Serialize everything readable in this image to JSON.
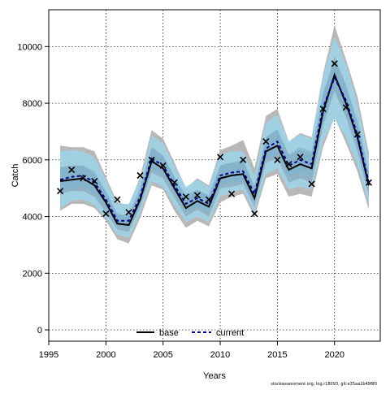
{
  "chart_data": {
    "type": "line",
    "xlabel": "Years",
    "ylabel": "Catch",
    "xlim": [
      1995,
      2024
    ],
    "ylim": [
      -400,
      11300
    ],
    "xticks": [
      1995,
      2000,
      2005,
      2010,
      2015,
      2020
    ],
    "yticks": [
      0,
      2000,
      4000,
      6000,
      8000,
      10000
    ],
    "grid": true,
    "legend_position": "bottom-center",
    "x": [
      1996,
      1997,
      1998,
      1999,
      2000,
      2001,
      2002,
      2003,
      2004,
      2005,
      2006,
      2007,
      2008,
      2009,
      2010,
      2011,
      2012,
      2013,
      2014,
      2015,
      2016,
      2017,
      2018,
      2019,
      2020,
      2021,
      2022,
      2023
    ],
    "series": [
      {
        "name": "base",
        "line_style": "solid",
        "color": "#000000",
        "band_color": "#b0b0b0",
        "values": [
          5250,
          5300,
          5350,
          5100,
          4500,
          3750,
          3700,
          4600,
          5950,
          5700,
          5000,
          4300,
          4550,
          4350,
          5350,
          5450,
          5500,
          4650,
          6300,
          6500,
          5650,
          5850,
          5700,
          7700,
          9000,
          8000,
          6800,
          5100
        ],
        "outer_lower": [
          4200,
          4450,
          4450,
          4300,
          3850,
          3200,
          3050,
          3950,
          5100,
          4950,
          4200,
          3600,
          3850,
          3650,
          4500,
          4700,
          4800,
          4000,
          5350,
          5500,
          4700,
          4800,
          4700,
          6450,
          7500,
          6600,
          5600,
          4250
        ],
        "outer_upper": [
          6500,
          6450,
          6450,
          6300,
          5400,
          4500,
          4400,
          5400,
          7050,
          6750,
          5900,
          5000,
          5350,
          5100,
          6350,
          6500,
          6700,
          5700,
          7550,
          7800,
          6650,
          6950,
          6800,
          9050,
          10750,
          9550,
          8250,
          6250
        ],
        "inner_lower": [
          4800,
          4900,
          4900,
          4700,
          4150,
          3550,
          3450,
          4350,
          5550,
          5350,
          4650,
          4000,
          4250,
          4000,
          5000,
          5050,
          5150,
          4350,
          5900,
          6050,
          5200,
          5350,
          5200,
          7200,
          8450,
          7500,
          6300,
          4750
        ],
        "inner_upper": [
          5750,
          5800,
          5800,
          5500,
          4850,
          4100,
          4000,
          5000,
          6450,
          6150,
          5400,
          4600,
          4900,
          4700,
          5800,
          5900,
          6000,
          5050,
          6800,
          7050,
          6150,
          6350,
          6200,
          8300,
          9650,
          8650,
          7350,
          5550
        ]
      },
      {
        "name": "current",
        "line_style": "dashed",
        "color": "#00008b",
        "band_color": "#87ceeb",
        "values": [
          5300,
          5400,
          5450,
          5200,
          4600,
          3850,
          3850,
          4700,
          6050,
          5800,
          5100,
          4450,
          4650,
          4450,
          5450,
          5550,
          5600,
          4800,
          6400,
          6650,
          5800,
          6000,
          5850,
          7850,
          8900,
          8100,
          6900,
          5200
        ],
        "outer_lower": [
          4300,
          4550,
          4600,
          4400,
          3950,
          3350,
          3250,
          4100,
          5250,
          5050,
          4400,
          3800,
          4000,
          3800,
          4700,
          4850,
          4950,
          4150,
          5500,
          5700,
          4950,
          5050,
          4950,
          6650,
          7450,
          6800,
          5800,
          4450
        ],
        "outer_upper": [
          6300,
          6350,
          6300,
          6100,
          5300,
          4450,
          4450,
          5300,
          6850,
          6600,
          5800,
          5050,
          5300,
          5050,
          6200,
          6300,
          6300,
          5450,
          7300,
          7600,
          6650,
          6900,
          6750,
          8950,
          10350,
          9400,
          8000,
          6050
        ],
        "inner_lower": [
          4900,
          5000,
          5050,
          4800,
          4300,
          3650,
          3600,
          4450,
          5700,
          5450,
          4800,
          4150,
          4350,
          4150,
          5100,
          5200,
          5250,
          4500,
          6000,
          6200,
          5400,
          5550,
          5400,
          7300,
          8400,
          7600,
          6400,
          4850
        ],
        "inner_upper": [
          5700,
          5800,
          5800,
          5600,
          4900,
          4050,
          4100,
          5000,
          6400,
          6150,
          5400,
          4750,
          4950,
          4750,
          5800,
          5900,
          5950,
          5100,
          6800,
          7100,
          6200,
          6450,
          6300,
          8400,
          9400,
          8600,
          7400,
          5600
        ]
      }
    ],
    "observed": {
      "marker": "x",
      "color": "#000000",
      "x": [
        1996,
        1997,
        1998,
        1999,
        2000,
        2001,
        2002,
        2003,
        2004,
        2005,
        2006,
        2007,
        2008,
        2009,
        2010,
        2011,
        2012,
        2013,
        2014,
        2015,
        2016,
        2017,
        2018,
        2019,
        2020,
        2021,
        2022,
        2023
      ],
      "y": [
        4900,
        5650,
        5350,
        5250,
        4100,
        4600,
        4150,
        5450,
        6000,
        5800,
        5200,
        4700,
        4750,
        4600,
        6100,
        4800,
        6000,
        4100,
        6650,
        6000,
        5850,
        6100,
        5150,
        7800,
        9400,
        7850,
        6900,
        5200
      ]
    }
  },
  "footer": "stockassessment.org, log.r18093, git:e35aa2b498f0"
}
